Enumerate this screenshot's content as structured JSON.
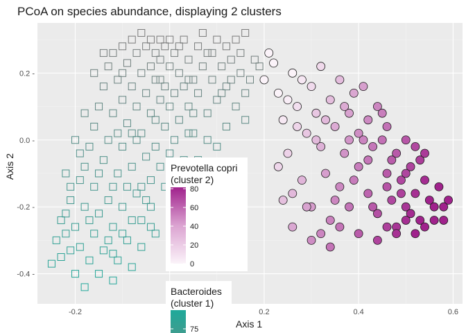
{
  "chart_data": {
    "type": "scatter",
    "title": "PCoA on species abundance, displaying 2 clusters",
    "xlabel": "Axis 1",
    "ylabel": "Axis 2",
    "xlim": [
      -0.28,
      0.62
    ],
    "ylim": [
      -0.49,
      0.35
    ],
    "x_ticks": [
      -0.2,
      0.2,
      0.4,
      0.6
    ],
    "x_tick_labels": [
      "-0.2",
      "0.2",
      "0.4",
      "0.6"
    ],
    "y_ticks": [
      0.2,
      0.0,
      -0.2,
      -0.4
    ],
    "y_tick_labels": [
      "0.2 -",
      "0.0 -",
      "-0.2 -",
      "-0.4 -"
    ],
    "grid": true,
    "series": [
      {
        "name": "Bacteroides (cluster 1)",
        "marker": "square-open",
        "color_low": "#7a7a7a",
        "color_high": "#1fa99a",
        "points": [
          [
            -0.25,
            -0.37
          ],
          [
            -0.24,
            -0.3
          ],
          [
            -0.23,
            -0.35
          ],
          [
            -0.22,
            -0.28
          ],
          [
            -0.22,
            -0.22
          ],
          [
            -0.21,
            -0.33
          ],
          [
            -0.21,
            -0.18
          ],
          [
            -0.2,
            -0.4
          ],
          [
            -0.2,
            -0.26
          ],
          [
            -0.19,
            -0.12
          ],
          [
            -0.19,
            -0.32
          ],
          [
            -0.18,
            -0.44
          ],
          [
            -0.18,
            -0.08
          ],
          [
            -0.18,
            -0.2
          ],
          [
            -0.17,
            -0.36
          ],
          [
            -0.17,
            -0.02
          ],
          [
            -0.16,
            -0.28
          ],
          [
            -0.16,
            0.04
          ],
          [
            -0.16,
            -0.14
          ],
          [
            -0.15,
            0.1
          ],
          [
            -0.15,
            -0.4
          ],
          [
            -0.15,
            -0.22
          ],
          [
            -0.14,
            0.16
          ],
          [
            -0.14,
            -0.06
          ],
          [
            -0.14,
            -0.33
          ],
          [
            -0.13,
            0.22
          ],
          [
            -0.13,
            0.0
          ],
          [
            -0.13,
            -0.18
          ],
          [
            -0.12,
            0.26
          ],
          [
            -0.12,
            0.08
          ],
          [
            -0.12,
            -0.26
          ],
          [
            -0.12,
            -0.42
          ],
          [
            -0.11,
            0.18
          ],
          [
            -0.11,
            -0.1
          ],
          [
            -0.11,
            -0.36
          ],
          [
            -0.1,
            0.28
          ],
          [
            -0.1,
            0.12
          ],
          [
            -0.1,
            -0.02
          ],
          [
            -0.1,
            -0.2
          ],
          [
            -0.09,
            0.23
          ],
          [
            -0.09,
            0.05
          ],
          [
            -0.09,
            -0.3
          ],
          [
            -0.08,
            0.3
          ],
          [
            -0.08,
            0.16
          ],
          [
            -0.08,
            -0.08
          ],
          [
            -0.08,
            -0.38
          ],
          [
            -0.07,
            0.26
          ],
          [
            -0.07,
            0.1
          ],
          [
            -0.07,
            -0.16
          ],
          [
            -0.06,
            0.32
          ],
          [
            -0.06,
            0.2
          ],
          [
            -0.06,
            0.02
          ],
          [
            -0.06,
            -0.24
          ],
          [
            -0.05,
            0.28
          ],
          [
            -0.05,
            0.14
          ],
          [
            -0.05,
            -0.05
          ],
          [
            -0.04,
            0.3
          ],
          [
            -0.04,
            0.22
          ],
          [
            -0.04,
            0.08
          ],
          [
            -0.04,
            -0.12
          ],
          [
            -0.03,
            0.26
          ],
          [
            -0.03,
            0.18
          ],
          [
            -0.03,
            -0.02
          ],
          [
            -0.03,
            -0.28
          ],
          [
            -0.02,
            0.24
          ],
          [
            -0.02,
            0.12
          ],
          [
            -0.02,
            -0.08
          ],
          [
            -0.01,
            0.28
          ],
          [
            -0.01,
            0.16
          ],
          [
            -0.01,
            0.04
          ],
          [
            0.0,
            0.22
          ],
          [
            0.0,
            0.1
          ],
          [
            0.0,
            -0.04
          ],
          [
            0.01,
            0.26
          ],
          [
            0.01,
            0.14
          ],
          [
            0.02,
            0.2
          ],
          [
            0.02,
            0.06
          ],
          [
            0.03,
            0.3
          ],
          [
            0.03,
            0.16
          ],
          [
            0.04,
            0.24
          ],
          [
            0.04,
            0.1
          ],
          [
            0.05,
            0.18
          ],
          [
            0.05,
            0.02
          ],
          [
            0.06,
            0.28
          ],
          [
            0.06,
            0.14
          ],
          [
            0.07,
            0.22
          ],
          [
            0.08,
            0.26
          ],
          [
            0.08,
            0.08
          ],
          [
            0.09,
            0.18
          ],
          [
            0.1,
            0.3
          ],
          [
            0.1,
            0.12
          ],
          [
            0.11,
            0.22
          ],
          [
            0.12,
            0.16
          ],
          [
            0.12,
            0.04
          ],
          [
            0.13,
            0.24
          ],
          [
            0.14,
            0.1
          ],
          [
            0.15,
            0.2
          ],
          [
            0.16,
            0.32
          ],
          [
            0.16,
            0.14
          ],
          [
            0.18,
            0.24
          ],
          [
            -0.22,
            -0.1
          ],
          [
            -0.2,
            0.0
          ],
          [
            -0.18,
            0.08
          ],
          [
            -0.16,
            0.2
          ],
          [
            -0.14,
            0.26
          ],
          [
            -0.12,
            -0.14
          ],
          [
            -0.1,
            0.2
          ],
          [
            -0.08,
            0.02
          ],
          [
            -0.06,
            -0.32
          ],
          [
            -0.04,
            -0.2
          ],
          [
            -0.02,
            0.3
          ],
          [
            0.0,
            0.3
          ],
          [
            0.02,
            -0.1
          ],
          [
            0.04,
            0.02
          ],
          [
            0.06,
            -0.06
          ],
          [
            0.08,
            0.0
          ],
          [
            0.1,
            -0.02
          ],
          [
            0.12,
            0.28
          ],
          [
            0.14,
            0.3
          ],
          [
            0.16,
            0.06
          ],
          [
            -0.13,
            -0.3
          ],
          [
            -0.11,
            0.02
          ],
          [
            -0.09,
            -0.14
          ],
          [
            -0.07,
            0.0
          ],
          [
            -0.05,
            -0.18
          ],
          [
            -0.03,
            0.06
          ],
          [
            -0.01,
            -0.14
          ],
          [
            0.01,
            0.0
          ],
          [
            0.03,
            -0.06
          ],
          [
            0.05,
            0.08
          ],
          [
            -0.15,
            -0.1
          ],
          [
            -0.17,
            -0.24
          ],
          [
            -0.19,
            -0.04
          ],
          [
            -0.21,
            -0.14
          ],
          [
            -0.23,
            -0.24
          ],
          [
            -0.12,
            -0.34
          ],
          [
            -0.1,
            -0.28
          ],
          [
            -0.08,
            -0.24
          ],
          [
            -0.06,
            -0.14
          ],
          [
            -0.04,
            -0.26
          ],
          [
            0.07,
            0.32
          ],
          [
            0.09,
            0.26
          ],
          [
            0.11,
            0.14
          ],
          [
            0.13,
            0.18
          ],
          [
            0.15,
            0.26
          ],
          [
            0.17,
            0.18
          ],
          [
            0.19,
            0.22
          ],
          [
            0.02,
            0.28
          ],
          [
            0.04,
            0.18
          ],
          [
            -0.02,
            0.18
          ]
        ]
      },
      {
        "name": "Prevotella copri (cluster 2)",
        "marker": "circle-filled",
        "color_low": "#fbf3f9",
        "color_high": "#a0228c",
        "points": [
          [
            0.22,
            0.23
          ],
          [
            0.23,
            0.14
          ],
          [
            0.24,
            0.06
          ],
          [
            0.25,
            -0.04
          ],
          [
            0.26,
            0.2
          ],
          [
            0.27,
            0.1
          ],
          [
            0.28,
            -0.12
          ],
          [
            0.29,
            0.02
          ],
          [
            0.3,
            0.16
          ],
          [
            0.3,
            -0.2
          ],
          [
            0.31,
            0.08
          ],
          [
            0.32,
            -0.02
          ],
          [
            0.32,
            0.22
          ],
          [
            0.33,
            -0.1
          ],
          [
            0.34,
            0.12
          ],
          [
            0.34,
            -0.24
          ],
          [
            0.35,
            0.04
          ],
          [
            0.36,
            -0.14
          ],
          [
            0.36,
            0.18
          ],
          [
            0.37,
            -0.04
          ],
          [
            0.38,
            0.08
          ],
          [
            0.38,
            -0.2
          ],
          [
            0.39,
            0.14
          ],
          [
            0.4,
            -0.08
          ],
          [
            0.4,
            0.02
          ],
          [
            0.41,
            0.16
          ],
          [
            0.42,
            -0.16
          ],
          [
            0.42,
            0.06
          ],
          [
            0.43,
            -0.02
          ],
          [
            0.44,
            0.1
          ],
          [
            0.44,
            -0.22
          ],
          [
            0.45,
            0.0
          ],
          [
            0.46,
            -0.1
          ],
          [
            0.46,
            0.04
          ],
          [
            0.47,
            -0.18
          ],
          [
            0.48,
            -0.04
          ],
          [
            0.48,
            -0.26
          ],
          [
            0.49,
            -0.12
          ],
          [
            0.5,
            0.0
          ],
          [
            0.5,
            -0.2
          ],
          [
            0.51,
            -0.08
          ],
          [
            0.52,
            -0.16
          ],
          [
            0.52,
            -0.02
          ],
          [
            0.53,
            -0.24
          ],
          [
            0.54,
            -0.12
          ],
          [
            0.55,
            -0.18
          ],
          [
            0.56,
            -0.2
          ],
          [
            0.57,
            -0.14
          ],
          [
            0.58,
            -0.24
          ],
          [
            0.59,
            -0.18
          ],
          [
            0.2,
            0.18
          ],
          [
            0.21,
            0.26
          ],
          [
            0.23,
            -0.08
          ],
          [
            0.25,
            0.12
          ],
          [
            0.26,
            -0.16
          ],
          [
            0.27,
            0.04
          ],
          [
            0.28,
            0.18
          ],
          [
            0.29,
            -0.2
          ],
          [
            0.31,
            0.0
          ],
          [
            0.33,
            0.06
          ],
          [
            0.35,
            -0.18
          ],
          [
            0.37,
            0.1
          ],
          [
            0.39,
            -0.12
          ],
          [
            0.41,
            0.0
          ],
          [
            0.43,
            -0.2
          ],
          [
            0.45,
            0.08
          ],
          [
            0.47,
            -0.06
          ],
          [
            0.49,
            -0.16
          ],
          [
            0.51,
            -0.22
          ],
          [
            0.53,
            -0.06
          ],
          [
            0.24,
            -0.18
          ],
          [
            0.26,
            -0.26
          ],
          [
            0.3,
            -0.3
          ],
          [
            0.32,
            -0.28
          ],
          [
            0.34,
            -0.32
          ],
          [
            0.36,
            -0.26
          ],
          [
            0.4,
            -0.28
          ],
          [
            0.44,
            -0.3
          ],
          [
            0.46,
            -0.26
          ],
          [
            0.5,
            -0.24
          ],
          [
            0.54,
            -0.26
          ],
          [
            0.56,
            -0.24
          ],
          [
            0.58,
            -0.2
          ],
          [
            0.52,
            -0.28
          ],
          [
            0.48,
            -0.28
          ],
          [
            0.38,
            0.0
          ],
          [
            0.42,
            -0.06
          ],
          [
            0.46,
            -0.14
          ],
          [
            0.5,
            -0.1
          ],
          [
            0.54,
            -0.04
          ]
        ]
      }
    ]
  },
  "legend": {
    "prevotella": {
      "title_line1": "Prevotella copri",
      "title_line2": "(cluster 2)",
      "ticks": [
        "80",
        "60",
        "40",
        "20",
        "0"
      ]
    },
    "bacteroides": {
      "title_line1": "Bacteroides",
      "title_line2": "(cluster 1)",
      "ticks": [
        "75"
      ]
    }
  }
}
